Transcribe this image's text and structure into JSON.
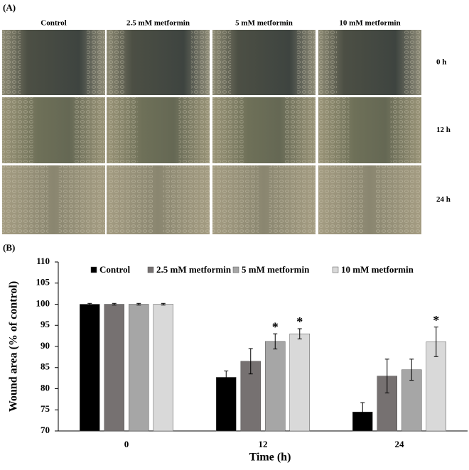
{
  "panel_a": {
    "label": "(A)",
    "columns": [
      "Control",
      "2.5 mM metformin",
      "5 mM metformin",
      "10 mM metformin"
    ],
    "rows": [
      "0 h",
      "12 h",
      "24 h"
    ]
  },
  "chart_data": {
    "type": "bar",
    "label": "(B)",
    "x_label": "Time (h)",
    "y_label": "Wound area (% of control)",
    "categories": [
      "0",
      "12",
      "24"
    ],
    "series": [
      {
        "name": "Control",
        "color": "#000000",
        "values": [
          100,
          82.7,
          74.5
        ],
        "errors": [
          0.2,
          1.5,
          2.2
        ],
        "significance": [
          null,
          null,
          null
        ]
      },
      {
        "name": "2.5 mM metformin",
        "color": "#767171",
        "values": [
          100,
          86.5,
          83
        ],
        "errors": [
          0.2,
          3,
          4
        ],
        "significance": [
          null,
          null,
          null
        ]
      },
      {
        "name": "5 mM metformin",
        "color": "#a6a6a6",
        "values": [
          100,
          91.2,
          84.5
        ],
        "errors": [
          0.2,
          1.8,
          2.5
        ],
        "significance": [
          null,
          "*",
          null
        ]
      },
      {
        "name": "10 mM metformin",
        "color": "#d9d9d9",
        "values": [
          100,
          93,
          91.1
        ],
        "errors": [
          0.2,
          1.2,
          3.5
        ],
        "significance": [
          null,
          "*",
          "*"
        ]
      }
    ],
    "ylim": [
      70,
      110
    ],
    "yticks": [
      70,
      75,
      80,
      85,
      90,
      95,
      100,
      105,
      110
    ],
    "grid": false,
    "legend": "top"
  }
}
